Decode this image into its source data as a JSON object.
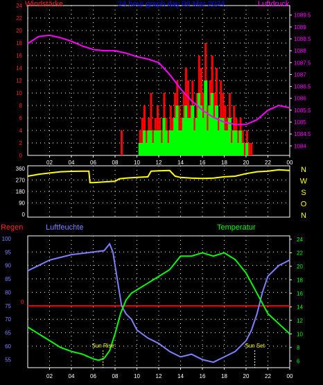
{
  "colors": {
    "background": "#000000",
    "axis": "#ffffff",
    "wind_speed": "#ff0000",
    "wind_gust": "#00ff00",
    "pressure": "#ff00ff",
    "title": "#0000ff",
    "direction": "#ffff00",
    "rain": "#ff0000",
    "humidity": "#8080ff",
    "temperature": "#00ff00",
    "sun": "#ffff00",
    "left_ticks_top": "#ff2020",
    "compass": "#ffff00",
    "humidity_ticks": "#8080ff",
    "temp_ticks": "#00ff00"
  },
  "chart_data": [
    {
      "type": "bar",
      "title": "24 hour graph day  09 Mar 2024",
      "left_label": "Windstärke",
      "right_label": "Luftdruck",
      "x_tick_labels": [
        "02",
        "04",
        "06",
        "08",
        "10",
        "12",
        "14",
        "16",
        "18",
        "20",
        "22",
        "00"
      ],
      "x_range_hours": [
        0,
        24
      ],
      "y_left_ticks": [
        0,
        2,
        4,
        6,
        8,
        10,
        12,
        14,
        16,
        18,
        20,
        22,
        24
      ],
      "y_left_range": [
        0,
        24
      ],
      "y_right_ticks": [
        "1084",
        "1084.5",
        "1085",
        "1085.5",
        "1086",
        "1086.5",
        "1087",
        "1087.5",
        "1088",
        "1088.5",
        "1089",
        "1089.5"
      ],
      "y_right_range": [
        1083.6,
        1089.9
      ],
      "pressure_series": {
        "hours": [
          0,
          1,
          2,
          3,
          4,
          5,
          6,
          7,
          8,
          9,
          10,
          11,
          12,
          13,
          14,
          15,
          16,
          17,
          18,
          19,
          20,
          21,
          22,
          23,
          24
        ],
        "values": [
          1088.3,
          1088.6,
          1088.65,
          1088.55,
          1088.4,
          1088.2,
          1088.05,
          1088.0,
          1088.0,
          1087.9,
          1087.75,
          1087.65,
          1087.5,
          1087.0,
          1086.4,
          1085.9,
          1085.5,
          1085.2,
          1085.0,
          1084.9,
          1084.9,
          1085.1,
          1085.5,
          1085.7,
          1085.6
        ]
      },
      "wind_bars": {
        "hours": [
          8.6,
          9.7,
          10.3,
          10.5,
          10.7,
          10.9,
          11.1,
          11.3,
          11.5,
          11.7,
          11.9,
          12.1,
          12.3,
          12.5,
          12.7,
          12.9,
          13.1,
          13.3,
          13.5,
          13.7,
          13.9,
          14.1,
          14.3,
          14.5,
          14.7,
          14.9,
          15.1,
          15.3,
          15.5,
          15.7,
          15.9,
          16.1,
          16.3,
          16.5,
          16.7,
          16.9,
          17.1,
          17.3,
          17.5,
          17.7,
          17.9,
          18.1,
          18.3,
          18.5,
          18.7,
          18.9,
          19.1,
          19.3,
          19.5,
          19.7,
          19.9,
          20.1,
          20.3,
          20.5
        ],
        "gust": [
          4,
          0,
          4,
          6,
          8,
          4,
          6,
          10,
          4,
          6,
          8,
          6,
          4,
          10,
          6,
          4,
          8,
          6,
          10,
          12,
          8,
          6,
          10,
          14,
          12,
          8,
          12,
          6,
          10,
          16,
          14,
          10,
          18,
          8,
          12,
          16,
          10,
          14,
          6,
          12,
          10,
          8,
          6,
          10,
          4,
          8,
          6,
          4,
          6,
          4,
          2,
          4,
          2,
          2
        ],
        "speed": [
          0,
          0,
          2,
          2,
          4,
          2,
          4,
          4,
          2,
          4,
          4,
          4,
          2,
          6,
          4,
          2,
          4,
          4,
          6,
          8,
          4,
          4,
          6,
          8,
          6,
          6,
          8,
          4,
          6,
          10,
          8,
          6,
          12,
          4,
          8,
          10,
          6,
          8,
          4,
          6,
          6,
          4,
          4,
          6,
          2,
          4,
          4,
          2,
          4,
          2,
          0,
          2,
          0,
          0
        ]
      }
    },
    {
      "type": "line",
      "y_ticks": [
        0,
        90,
        180,
        270,
        360
      ],
      "y_range": [
        0,
        360
      ],
      "compass_labels": [
        "N",
        "W",
        "S",
        "O",
        "N"
      ],
      "direction_series": {
        "hours": [
          0,
          1,
          2,
          3,
          4,
          5,
          5.6,
          5.7,
          6,
          7,
          8,
          8.4,
          9,
          10,
          11,
          11.3,
          12,
          13,
          13.5,
          14,
          15,
          16,
          17,
          18,
          19,
          20,
          21,
          22,
          23,
          24
        ],
        "values": [
          300,
          315,
          325,
          335,
          338,
          340,
          340,
          250,
          250,
          255,
          260,
          280,
          285,
          290,
          295,
          340,
          342,
          345,
          300,
          290,
          285,
          282,
          285,
          295,
          300,
          320,
          335,
          340,
          350,
          345
        ]
      }
    },
    {
      "type": "line",
      "rain_label": "Regen",
      "humidity_label": "Luftfeuchte",
      "temperature_label": "Temperatur",
      "sunrise_label": "Sun Rise",
      "sunset_label": "Sun Set",
      "sunrise_hour": 6.9,
      "sunset_hour": 20.8,
      "x_tick_labels": [
        "02",
        "04",
        "06",
        "08",
        "10",
        "12",
        "14",
        "16",
        "18",
        "20",
        "22",
        "00"
      ],
      "humidity_ticks": [
        55,
        60,
        65,
        70,
        75,
        80,
        85,
        90,
        95,
        100
      ],
      "humidity_range": [
        52,
        101
      ],
      "rain_tick_label": "0",
      "temp_ticks": [
        6,
        8,
        10,
        12,
        14,
        16,
        18,
        20,
        22,
        24
      ],
      "temp_range": [
        5,
        24.5
      ],
      "humidity_series": {
        "hours": [
          0,
          0.5,
          1,
          2,
          3,
          4,
          5,
          6,
          7,
          7.5,
          7.8,
          8.2,
          8.6,
          9,
          9.5,
          10,
          11,
          12,
          13,
          14,
          15,
          16,
          17,
          18,
          19,
          20,
          20.5,
          21,
          21.5,
          22,
          23,
          24
        ],
        "values": [
          88,
          89,
          90,
          92,
          93,
          94,
          94.5,
          95,
          95.5,
          98,
          95,
          85,
          75,
          72,
          70,
          66,
          63,
          61,
          58,
          56,
          57,
          55,
          54,
          56,
          58,
          62,
          66,
          72,
          80,
          86,
          90,
          92
        ]
      },
      "temperature_series": {
        "hours": [
          0,
          0.5,
          1,
          2,
          3,
          4,
          5,
          6,
          6.5,
          7,
          7.5,
          8,
          8.5,
          9,
          9.5,
          10,
          11,
          12,
          13,
          14,
          15,
          16,
          17,
          18,
          19,
          20,
          21,
          22,
          23,
          24
        ],
        "values": [
          11,
          10.5,
          10,
          9,
          8,
          7.4,
          7,
          6.3,
          6.1,
          6.4,
          7.5,
          10,
          13,
          15,
          16,
          16.5,
          17.5,
          18.5,
          19.5,
          21.5,
          21.5,
          22,
          21.5,
          22,
          21,
          19,
          16,
          13,
          11.5,
          10
        ]
      },
      "rain_value": 0
    }
  ]
}
